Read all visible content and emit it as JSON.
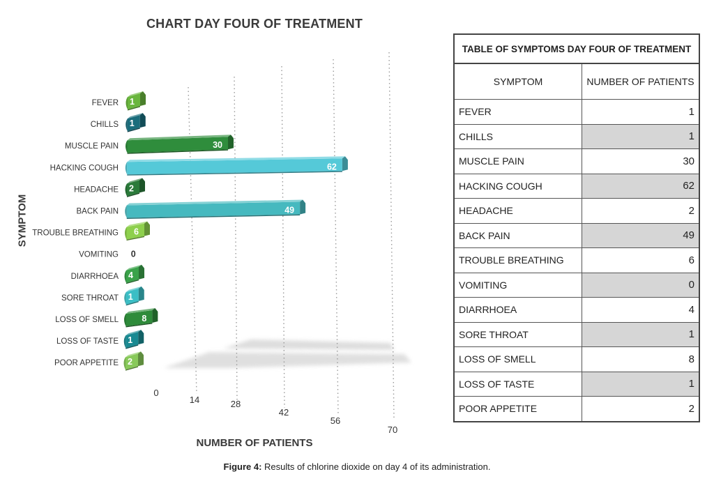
{
  "chart_data": {
    "type": "bar",
    "orientation": "horizontal",
    "title": "CHART DAY FOUR OF TREATMENT",
    "xlabel": "NUMBER OF PATIENTS",
    "ylabel": "SYMPTOM",
    "xlim": [
      0,
      70
    ],
    "xticks": [
      "0",
      "14",
      "28",
      "42",
      "56",
      "70"
    ],
    "grid": true,
    "categories": [
      "FEVER",
      "CHILLS",
      "MUSCLE PAIN",
      "HACKING COUGH",
      "HEADACHE",
      "BACK PAIN",
      "TROUBLE BREATHING",
      "VOMITING",
      "DIARRHOEA",
      "SORE THROAT",
      "LOSS OF SMELL",
      "LOSS OF TASTE",
      "POOR APPETITE"
    ],
    "values": [
      1,
      1,
      30,
      62,
      2,
      49,
      6,
      0,
      4,
      1,
      8,
      1,
      2
    ],
    "value_labels": [
      "1",
      "1",
      "30",
      "62",
      "2",
      "49",
      "6",
      "0",
      "4",
      "1",
      "8",
      "1",
      "2"
    ],
    "colors": [
      "#6ab63e",
      "#1a6d7c",
      "#2f8d3c",
      "#55c9d8",
      "#2a7a3a",
      "#46b9bf",
      "#8ed04d",
      "#888888",
      "#3aa24a",
      "#3bbec5",
      "#2e8b3a",
      "#198a92",
      "#88c95a"
    ]
  },
  "table": {
    "title": "TABLE OF SYMPTOMS DAY FOUR OF TREATMENT",
    "headers": [
      "SYMPTOM",
      "NUMBER OF PATIENTS"
    ],
    "rows": [
      {
        "symptom": "FEVER",
        "value": "1"
      },
      {
        "symptom": "CHILLS",
        "value": "1"
      },
      {
        "symptom": "MUSCLE PAIN",
        "value": "30"
      },
      {
        "symptom": "HACKING COUGH",
        "value": "62"
      },
      {
        "symptom": "HEADACHE",
        "value": "2"
      },
      {
        "symptom": "BACK PAIN",
        "value": "49"
      },
      {
        "symptom": "TROUBLE BREATHING",
        "value": "6"
      },
      {
        "symptom": "VOMITING",
        "value": "0"
      },
      {
        "symptom": "DIARRHOEA",
        "value": "4"
      },
      {
        "symptom": "SORE THROAT",
        "value": "1"
      },
      {
        "symptom": "LOSS OF SMELL",
        "value": "8"
      },
      {
        "symptom": "LOSS OF TASTE",
        "value": "1"
      },
      {
        "symptom": "POOR APPETITE",
        "value": "2"
      }
    ]
  },
  "caption": {
    "label": "Figure 4:",
    "text": " Results of chlorine dioxide on day 4 of its administration."
  }
}
